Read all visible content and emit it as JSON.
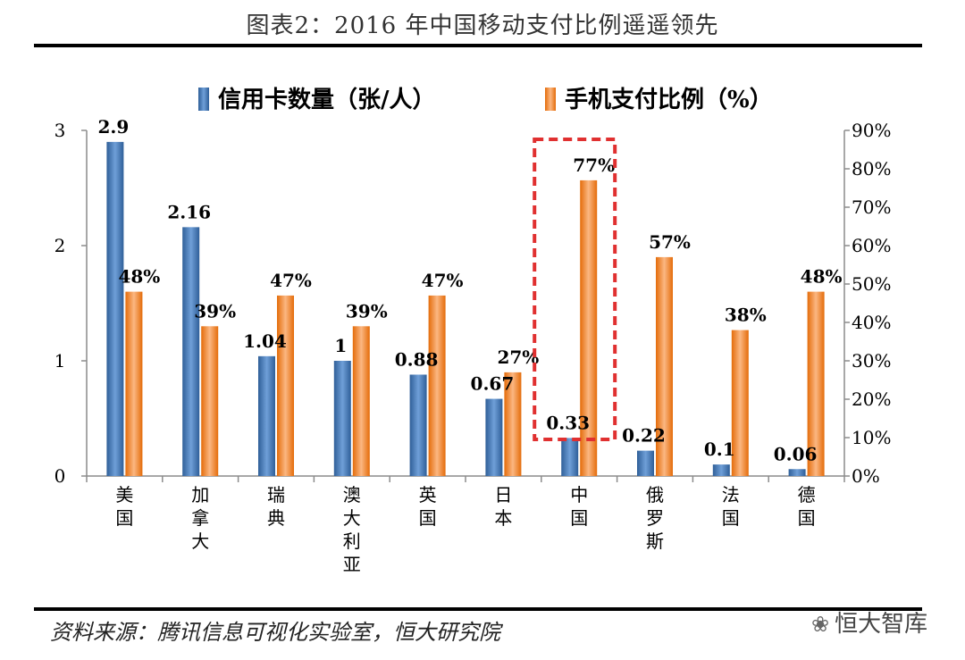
{
  "header": {
    "title": "图表2：2016 年中国移动支付比例遥遥领先"
  },
  "footer": {
    "source": "资料来源：腾讯信息可视化实验室，恒大研究院",
    "watermark": "恒大智库"
  },
  "colors": {
    "series1": "#4a7ebb",
    "series2": "#f79646",
    "highlight": "#e03030"
  },
  "chart_data": {
    "type": "bar",
    "categories": [
      "美国",
      "加拿大",
      "瑞典",
      "澳大利亚",
      "英国",
      "日本",
      "中国",
      "俄罗斯",
      "法国",
      "德国"
    ],
    "series": [
      {
        "name": "信用卡数量（张/人）",
        "axis": "left",
        "values": [
          2.9,
          2.16,
          1.04,
          1,
          0.88,
          0.67,
          0.33,
          0.22,
          0.1,
          0.06
        ],
        "labels": [
          "2.9",
          "2.16",
          "1.04",
          "1",
          "0.88",
          "0.67",
          "0.33",
          "0.22",
          "0.1",
          "0.06"
        ]
      },
      {
        "name": "手机支付比例（%）",
        "axis": "right",
        "values": [
          48,
          39,
          47,
          39,
          47,
          27,
          77,
          57,
          38,
          48
        ],
        "labels": [
          "48%",
          "39%",
          "47%",
          "39%",
          "47%",
          "27%",
          "77%",
          "57%",
          "38%",
          "48%"
        ]
      }
    ],
    "y_left": {
      "ylim": [
        0,
        3
      ],
      "ticks": [
        "0",
        "1",
        "2",
        "3"
      ],
      "tick_values": [
        0,
        1,
        2,
        3
      ]
    },
    "y_right": {
      "ylim": [
        0,
        90
      ],
      "ticks": [
        "0%",
        "10%",
        "20%",
        "30%",
        "40%",
        "50%",
        "60%",
        "70%",
        "80%",
        "90%"
      ],
      "tick_values": [
        0,
        10,
        20,
        30,
        40,
        50,
        60,
        70,
        80,
        90
      ]
    },
    "legend": {
      "position": "top"
    },
    "highlight_category": "中国",
    "grid": false
  }
}
